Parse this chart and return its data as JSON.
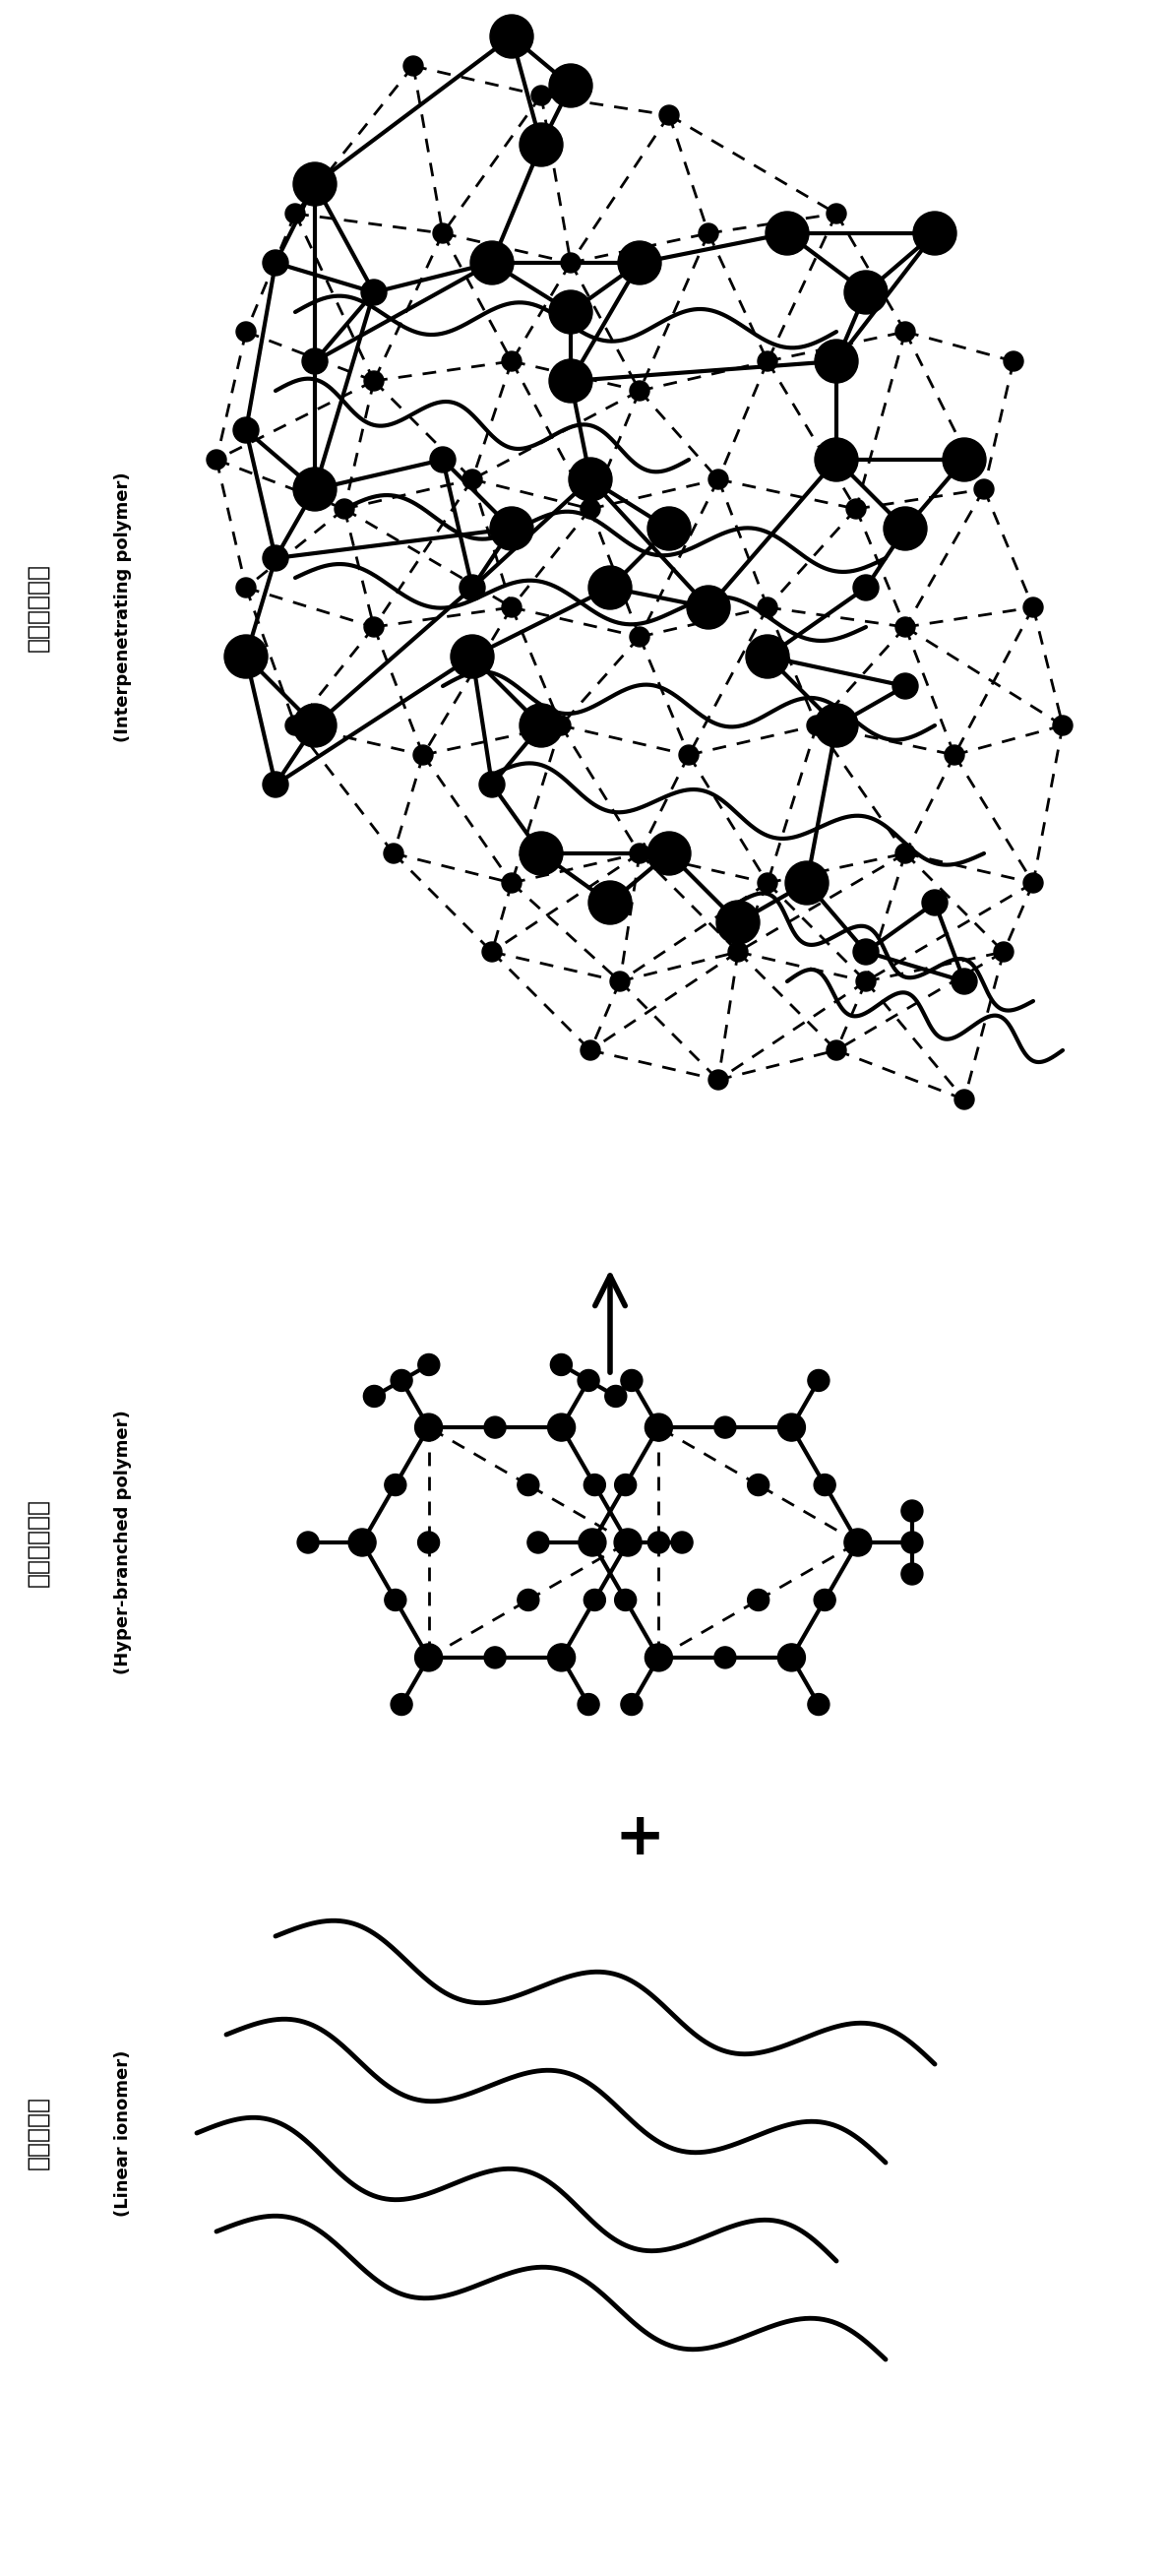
{
  "title_top_cn": "互穿型高分子",
  "title_top_en": "(Interpenetrating polymer)",
  "title_mid_cn": "超支化聚合物",
  "title_mid_en": "(Hyper-branched polymer)",
  "title_bot_cn": "线性聚离子",
  "title_bot_en": "(Linear ionomer)",
  "bg_color": "#ffffff",
  "node_color": "#000000",
  "line_color": "#000000",
  "lw_solid": 3.0,
  "lw_dashed": 2.0,
  "lw_wavy": 3.5
}
